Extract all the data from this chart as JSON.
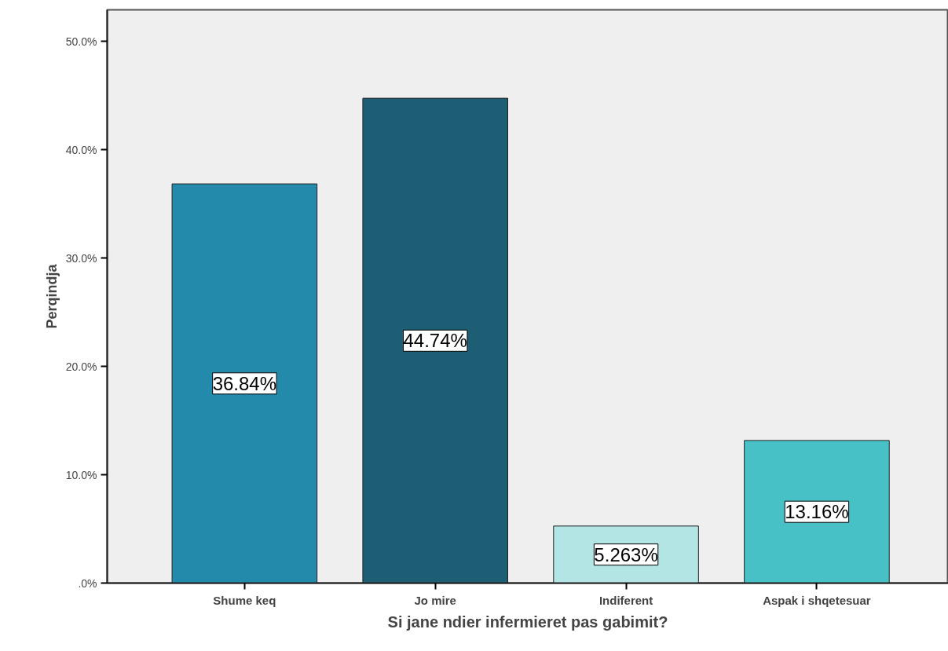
{
  "chart_data": {
    "type": "bar",
    "xlabel": "Si jane ndier infermieret pas gabimit?",
    "ylabel": "Perqindja",
    "categories": [
      "Shume keq",
      "Jo mire",
      "Indiferent",
      "Aspak i shqetesuar"
    ],
    "values": [
      36.84,
      44.74,
      5.263,
      13.16
    ],
    "colors": [
      "#248aab",
      "#1d5e74",
      "#b3e5e5",
      "#48c1c6"
    ],
    "value_labels": [
      "36.84%",
      "44.74%",
      "5.263%",
      "13.16%"
    ],
    "ylim": [
      0,
      52.9
    ],
    "yticks": [
      {
        "value": 0,
        "label": ".0%"
      },
      {
        "value": 10,
        "label": "10.0%"
      },
      {
        "value": 20,
        "label": "20.0%"
      },
      {
        "value": 30,
        "label": "30.0%"
      },
      {
        "value": 40,
        "label": "40.0%"
      },
      {
        "value": 50,
        "label": "50.0%"
      }
    ],
    "grid": false
  }
}
